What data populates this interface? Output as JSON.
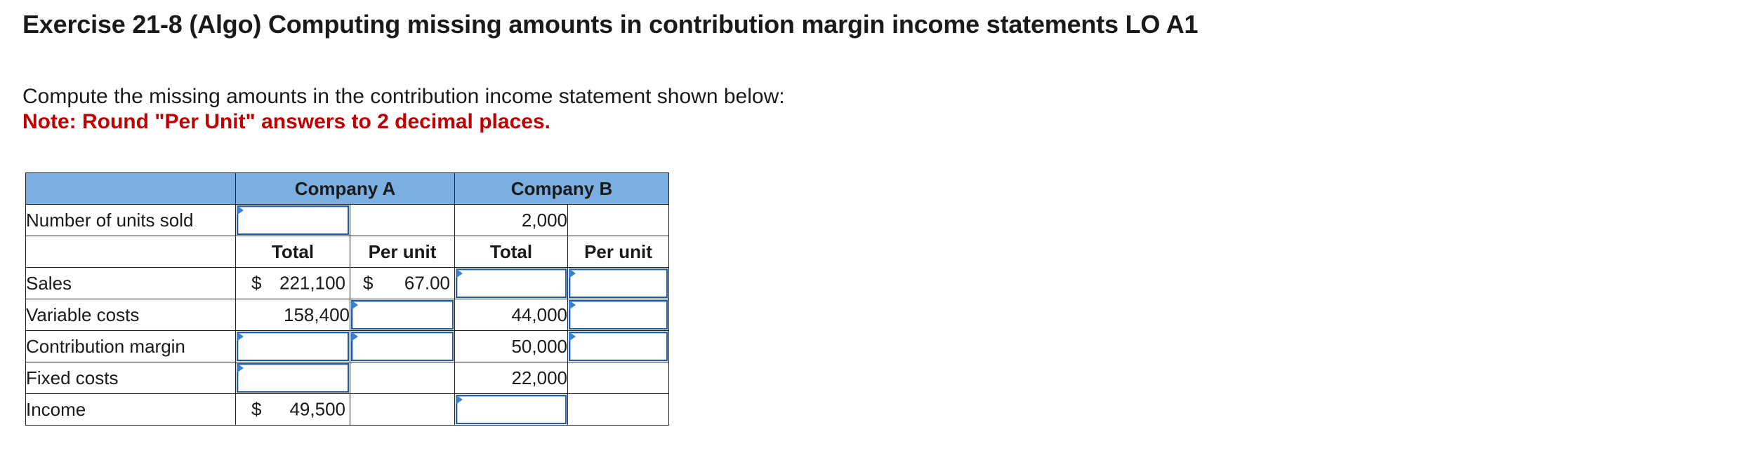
{
  "title": "Exercise 21-8 (Algo) Computing missing amounts in contribution margin income statements LO A1",
  "instructions": "Compute the missing amounts in the contribution income statement shown below:",
  "note": "Note: Round \"Per Unit\" answers to 2 decimal places.",
  "colors": {
    "header_bg": "#7bafe2",
    "note_red": "#c00000",
    "input_border": "#1f5fa8"
  },
  "table": {
    "companies": [
      "Company A",
      "Company B"
    ],
    "units_label": "Number of units sold",
    "units_b": "2,000",
    "subheaders": [
      "Total",
      "Per unit",
      "Total",
      "Per unit"
    ],
    "rows": [
      {
        "label": "Sales",
        "a_total_currency": "$",
        "a_total": "221,100",
        "a_per_unit_currency": "$",
        "a_per_unit": "67.00"
      },
      {
        "label": "Variable costs",
        "a_total": "158,400",
        "b_total": "44,000"
      },
      {
        "label": "Contribution margin",
        "b_total": "50,000"
      },
      {
        "label": "Fixed costs",
        "b_total": "22,000"
      },
      {
        "label": "Income",
        "a_total_currency": "$",
        "a_total": "49,500"
      }
    ]
  }
}
